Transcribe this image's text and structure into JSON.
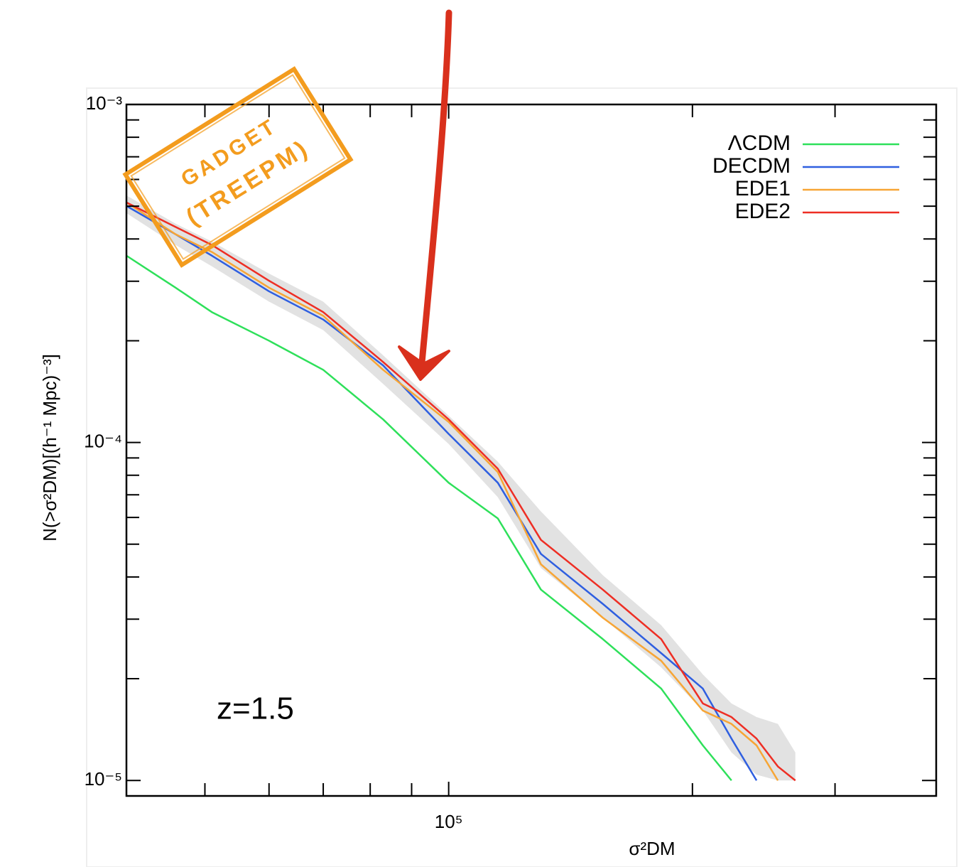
{
  "chart_data": {
    "type": "line",
    "xlabel": "σ²DM",
    "ylabel": "N(>σ²DM)[(h⁻¹ Mpc)⁻³]",
    "xscale": "log",
    "yscale": "log",
    "xlim": [
      40000,
      400000
    ],
    "ylim": [
      9e-06,
      0.001
    ],
    "xticks": [
      {
        "value": 100000,
        "label": "10⁵"
      }
    ],
    "xminorticks": [
      50000,
      60000,
      70000,
      80000,
      90000,
      200000,
      300000
    ],
    "yticks": [
      {
        "value": 1e-05,
        "label": "10⁻⁵"
      },
      {
        "value": 0.0001,
        "label": "10⁻⁴"
      },
      {
        "value": 0.001,
        "label": "10⁻³"
      }
    ],
    "yminorticks": [
      2e-05,
      3e-05,
      4e-05,
      5e-05,
      6e-05,
      7e-05,
      8e-05,
      9e-05,
      0.0002,
      0.0003,
      0.0004,
      0.0005,
      0.0006,
      0.0007,
      0.0008,
      0.0009
    ],
    "legend": "upper right",
    "annotations": [
      "z=1.5",
      "GADGET",
      "(TREEPM)"
    ],
    "x": [
      40000,
      46000,
      51000,
      60000,
      70000,
      83000,
      100000,
      115000,
      130000,
      155000,
      183000,
      206000,
      223500,
      240000,
      255000,
      268000
    ],
    "band": {
      "color": "#e2e2e2",
      "lower": [
        0.000477,
        0.000384,
        0.000332,
        0.000261,
        0.000215,
        0.000149,
        9.9e-05,
        6.89e-05,
        4.25e-05,
        3.03e-05,
        2.16e-05,
        1.61e-05,
        1.21e-05,
        1.04e-05,
        1e-05,
        1e-05
      ],
      "upper": [
        0.000538,
        0.000444,
        0.000393,
        0.000316,
        0.000261,
        0.000181,
        0.00012,
        8.77e-05,
        6.25e-05,
        4.05e-05,
        2.88e-05,
        2.06e-05,
        1.69e-05,
        1.54e-05,
        1.47e-05,
        1.21e-05
      ]
    },
    "series": [
      {
        "name": "ΛCDM",
        "color": "#2ee05a",
        "values": [
          0.000357,
          0.000287,
          0.000243,
          0.0002,
          0.000164,
          0.000117,
          7.6e-05,
          5.96e-05,
          3.67e-05,
          2.62e-05,
          1.87e-05,
          1.27e-05,
          1e-05,
          null,
          null,
          null
        ]
      },
      {
        "name": "DECDM",
        "color": "#2f5fe0",
        "values": [
          0.000501,
          0.000413,
          0.000357,
          0.00028,
          0.000231,
          0.000169,
          0.000106,
          7.6e-05,
          4.68e-05,
          3.33e-05,
          2.38e-05,
          1.87e-05,
          1.33e-05,
          1e-05,
          null,
          null
        ]
      },
      {
        "name": "EDE1",
        "color": "#f7a535",
        "values": [
          0.000513,
          0.000413,
          0.000366,
          0.000287,
          0.000237,
          0.000164,
          0.000115,
          8.17e-05,
          4.36e-05,
          3.03e-05,
          2.26e-05,
          1.61e-05,
          1.47e-05,
          1.27e-05,
          1e-05,
          null
        ]
      },
      {
        "name": "EDE2",
        "color": "#ee2e24",
        "values": [
          0.000513,
          0.000434,
          0.000384,
          0.000301,
          0.000243,
          0.000173,
          0.000117,
          8.36e-05,
          5.15e-05,
          3.67e-05,
          2.62e-05,
          1.69e-05,
          1.54e-05,
          1.33e-05,
          1.1e-05,
          1e-05
        ]
      }
    ]
  }
}
